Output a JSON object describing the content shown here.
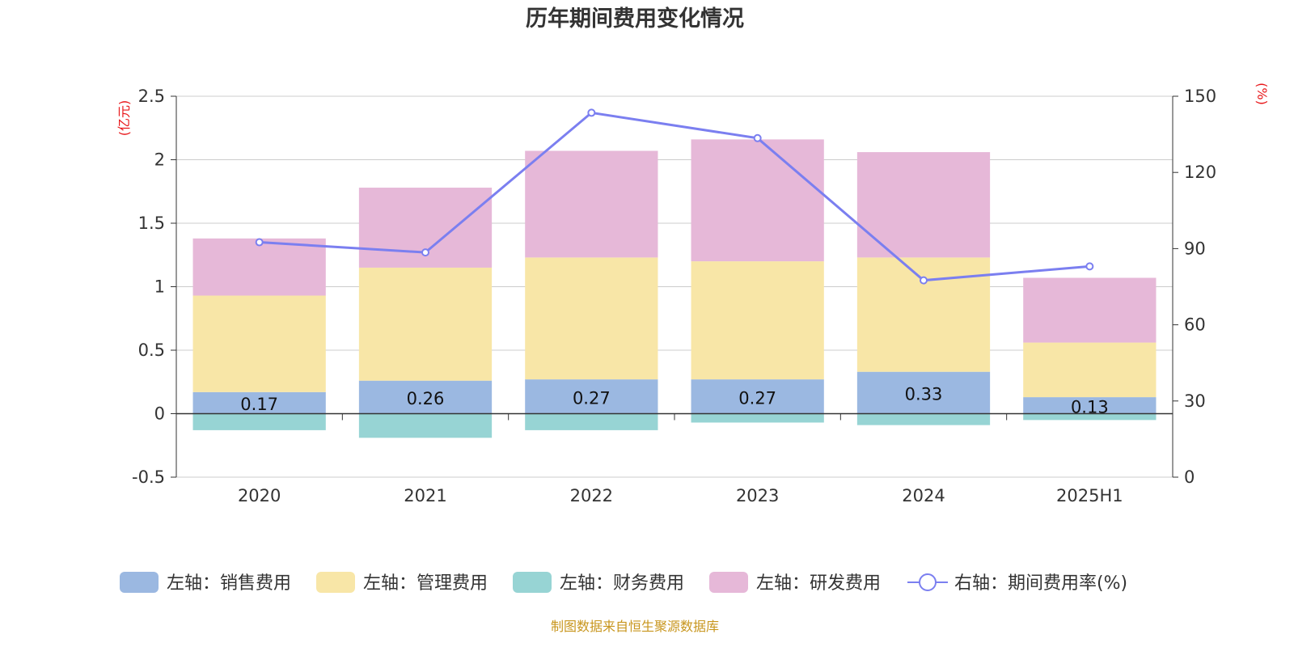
{
  "chart_data": {
    "type": "bar",
    "title": "历年期间费用变化情况",
    "categories": [
      "2020",
      "2021",
      "2022",
      "2023",
      "2024",
      "2025H1"
    ],
    "series": [
      {
        "name": "左轴：销售费用",
        "axis": "left",
        "color": "#9bb8e1",
        "values": [
          0.17,
          0.26,
          0.27,
          0.27,
          0.33,
          0.13
        ],
        "labels": [
          "0.17",
          "0.26",
          "0.27",
          "0.27",
          "0.33",
          "0.13"
        ]
      },
      {
        "name": "左轴：管理费用",
        "axis": "left",
        "color": "#f8e6a7",
        "values": [
          0.76,
          0.89,
          0.96,
          0.93,
          0.9,
          0.43
        ]
      },
      {
        "name": "左轴：财务费用",
        "axis": "left",
        "color": "#97d4d4",
        "values": [
          -0.13,
          -0.19,
          -0.13,
          -0.07,
          -0.09,
          -0.05
        ]
      },
      {
        "name": "左轴：研发费用",
        "axis": "left",
        "color": "#e6b8d8",
        "values": [
          0.45,
          0.63,
          0.84,
          0.96,
          0.83,
          0.51
        ]
      },
      {
        "name": "右轴：期间费用率(%)",
        "axis": "right",
        "type": "line",
        "color": "#7b7ff0",
        "values": [
          92.5,
          88.5,
          143.5,
          133.5,
          77.5,
          83
        ]
      }
    ],
    "left_axis": {
      "unit": "(亿元)",
      "ylim": [
        -0.5,
        2.5
      ],
      "ticks": [
        "-0.5",
        "0",
        "0.5",
        "1",
        "1.5",
        "2",
        "2.5"
      ],
      "tick_values": [
        -0.5,
        0,
        0.5,
        1,
        1.5,
        2,
        2.5
      ]
    },
    "right_axis": {
      "unit": "(%)",
      "ylim": [
        0,
        150
      ],
      "ticks": [
        "0",
        "30",
        "60",
        "90",
        "120",
        "150"
      ],
      "tick_values": [
        0,
        30,
        60,
        90,
        120,
        150
      ]
    },
    "grid": true,
    "legend_position": "bottom",
    "source": "制图数据来自恒生聚源数据库"
  }
}
